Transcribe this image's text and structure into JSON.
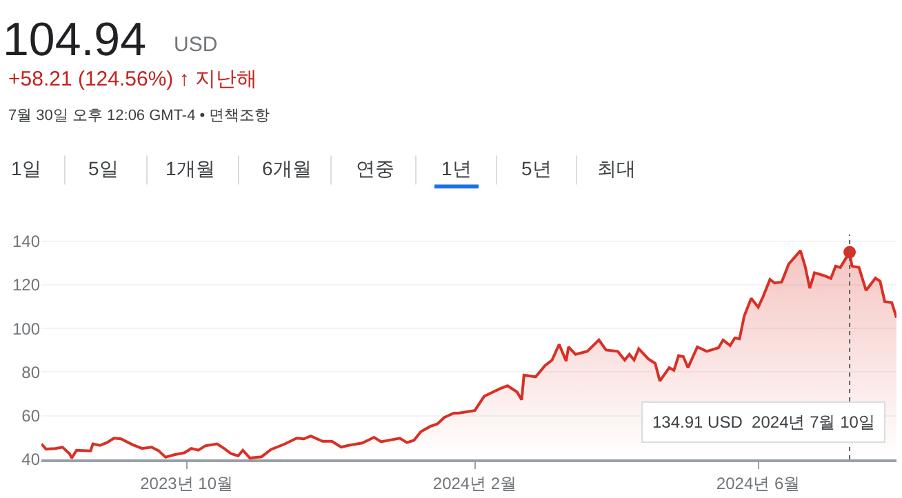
{
  "chart_data": {
    "type": "area",
    "title": "104.94",
    "annotations": [
      "USD",
      "+58.21 (124.56%) ↑ 지난해",
      "7월 30일 오후 12:06 GMT-4 • 면책조항",
      "1일",
      "5일",
      "1개월",
      "6개월",
      "연중",
      "1년",
      "5년",
      "최대",
      "134.91 USD  2024년 7월 10일"
    ],
    "x": [
      "2023-07-31",
      "2023-08-02",
      "2023-08-06",
      "2023-08-09",
      "2023-08-12",
      "2023-08-13",
      "2023-08-15",
      "2023-08-21",
      "2023-08-22",
      "2023-08-25",
      "2023-08-28",
      "2023-08-31",
      "2023-09-03",
      "2023-09-08",
      "2023-09-12",
      "2023-09-16",
      "2023-09-19",
      "2023-09-22",
      "2023-09-26",
      "2023-09-30",
      "2023-10-03",
      "2023-10-06",
      "2023-10-09",
      "2023-10-14",
      "2023-10-17",
      "2023-10-20",
      "2023-10-23",
      "2023-10-25",
      "2023-10-28",
      "2023-11-02",
      "2023-11-06",
      "2023-11-12",
      "2023-11-17",
      "2023-11-20",
      "2023-11-23",
      "2023-11-28",
      "2023-12-02",
      "2023-12-06",
      "2023-12-09",
      "2023-12-15",
      "2023-12-20",
      "2023-12-23",
      "2023-12-31",
      "2024-01-03",
      "2024-01-06",
      "2024-01-09",
      "2024-01-13",
      "2024-01-16",
      "2024-01-19",
      "2024-01-23",
      "2024-01-25",
      "2024-02-01",
      "2024-02-05",
      "2024-02-12",
      "2024-02-15",
      "2024-02-19",
      "2024-02-21",
      "2024-02-22",
      "2024-02-27",
      "2024-03-02",
      "2024-03-05",
      "2024-03-08",
      "2024-03-11",
      "2024-03-12",
      "2024-03-15",
      "2024-03-20",
      "2024-03-25",
      "2024-03-28",
      "2024-04-02",
      "2024-04-05",
      "2024-04-07",
      "2024-04-09",
      "2024-04-11",
      "2024-04-15",
      "2024-04-18",
      "2024-04-20",
      "2024-04-24",
      "2024-04-26",
      "2024-04-28",
      "2024-04-30",
      "2024-05-02",
      "2024-05-06",
      "2024-05-10",
      "2024-05-15",
      "2024-05-17",
      "2024-05-20",
      "2024-05-22",
      "2024-05-24",
      "2024-05-26",
      "2024-05-29",
      "2024-06-01",
      "2024-06-03",
      "2024-06-06",
      "2024-06-08",
      "2024-06-11",
      "2024-06-14",
      "2024-06-16",
      "2024-06-19",
      "2024-06-21",
      "2024-06-23",
      "2024-06-25",
      "2024-06-29",
      "2024-07-02",
      "2024-07-04",
      "2024-07-06",
      "2024-07-10",
      "2024-07-11",
      "2024-07-14",
      "2024-07-17",
      "2024-07-19",
      "2024-07-21",
      "2024-07-23",
      "2024-07-25",
      "2024-07-28",
      "2024-07-30"
    ],
    "series": [
      {
        "color": "#d93025",
        "values": [
          47.1,
          44.7,
          45,
          45.6,
          42.6,
          40.6,
          44.2,
          43.9,
          47.1,
          46.4,
          47.7,
          49.7,
          49.4,
          46.7,
          45,
          45.6,
          44,
          41,
          42.2,
          43,
          45,
          44.2,
          46.2,
          47.1,
          45,
          42.6,
          41.6,
          44.2,
          40.6,
          41.2,
          44.5,
          47.1,
          49.7,
          49.4,
          50.7,
          48.3,
          48.3,
          45.6,
          46.4,
          47.5,
          50.1,
          48.1,
          49.7,
          47.7,
          48.7,
          52.7,
          55.1,
          56.2,
          59.2,
          61.2,
          61.2,
          62.4,
          68.9,
          72.5,
          73.7,
          70.9,
          67.3,
          78.6,
          77.8,
          83,
          85.5,
          92.7,
          85,
          91.5,
          88.1,
          89.5,
          94.7,
          90.1,
          89.5,
          85.5,
          88.1,
          85.5,
          90.7,
          86.1,
          84,
          75.9,
          82,
          80.8,
          87.5,
          87.1,
          82,
          91.5,
          89.5,
          91.1,
          94.7,
          92.1,
          95.6,
          95.2,
          105.6,
          113.8,
          109.7,
          114.4,
          122.4,
          120.8,
          121.2,
          129.5,
          131.9,
          135.6,
          128.5,
          118.4,
          125.5,
          124.2,
          122.9,
          128.5,
          127.9,
          134.91,
          128.5,
          127.9,
          117.4,
          120.2,
          123,
          121.6,
          112.3,
          111.8,
          104.94
        ]
      }
    ],
    "xlim": [
      "2023-07-31",
      "2024-07-30"
    ],
    "xticks": [
      {
        "value": "2023-10-01",
        "label": "2023년 10월"
      },
      {
        "value": "2024-02-01",
        "label": "2024년 2월"
      },
      {
        "value": "2024-06-01",
        "label": "2024년 6월"
      }
    ],
    "ylim": [
      40,
      143
    ],
    "yticks": [
      40,
      60,
      80,
      100,
      120,
      140
    ],
    "grid": "y",
    "ref_lines": [
      {
        "axis": "x",
        "value": "2024-07-10",
        "color": "#5f6368",
        "line_style": "dotted"
      }
    ]
  }
}
